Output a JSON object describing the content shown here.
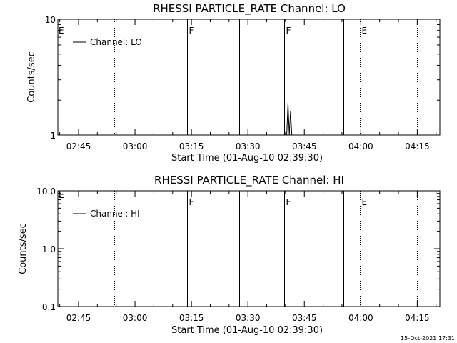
{
  "chart_data": [
    {
      "type": "line",
      "title": "RHESSI PARTICLE_RATE Channel: LO",
      "xlabel": "Start Time (01-Aug-10 02:39:30)",
      "ylabel": "Counts/sec",
      "y_scale": "log",
      "xlim": [
        "02:39:30",
        "04:21:00"
      ],
      "ylim": [
        1,
        10
      ],
      "xticks": [
        "02:45",
        "03:00",
        "03:15",
        "03:30",
        "03:45",
        "04:00",
        "04:15"
      ],
      "yticks": [
        "1",
        "10"
      ],
      "legend": {
        "label": "Channel: LO",
        "position": "top-left"
      },
      "series": [
        {
          "name": "Channel: LO",
          "x": [
            "03:40:20",
            "03:40:40",
            "03:41:00",
            "03:41:20",
            "03:41:40",
            "03:42:00"
          ],
          "y": [
            1,
            1.9,
            1,
            1.6,
            1,
            1
          ]
        }
      ],
      "markers": [
        {
          "time": "02:54:30",
          "style": "dotted",
          "label": ""
        },
        {
          "time": "03:13:50",
          "style": "solid",
          "label": "F"
        },
        {
          "time": "03:27:40",
          "style": "solid",
          "label": ""
        },
        {
          "time": "03:39:35",
          "style": "solid",
          "label": "F"
        },
        {
          "time": "03:55:20",
          "style": "solid",
          "label": ""
        },
        {
          "time": "03:59:50",
          "style": "dotted",
          "label": "E"
        },
        {
          "time": "04:15:00",
          "style": "dotted",
          "label": ""
        }
      ],
      "edge_labels": {
        "left": "E"
      }
    },
    {
      "type": "line",
      "title": "RHESSI PARTICLE_RATE Channel: HI",
      "xlabel": "Start Time (01-Aug-10 02:39:30)",
      "ylabel": "Counts/sec",
      "y_scale": "log",
      "xlim": [
        "02:39:30",
        "04:21:00"
      ],
      "ylim": [
        0.1,
        10
      ],
      "xticks": [
        "02:45",
        "03:00",
        "03:15",
        "03:30",
        "03:45",
        "04:00",
        "04:15"
      ],
      "yticks": [
        "0.1",
        "1.0",
        "10.0"
      ],
      "legend": {
        "label": "Channel: HI",
        "position": "top-left"
      },
      "series": [
        {
          "name": "Channel: HI",
          "x": [],
          "y": []
        }
      ],
      "markers": [
        {
          "time": "02:54:30",
          "style": "dotted",
          "label": ""
        },
        {
          "time": "03:13:50",
          "style": "solid",
          "label": "F"
        },
        {
          "time": "03:27:40",
          "style": "solid",
          "label": ""
        },
        {
          "time": "03:39:35",
          "style": "solid",
          "label": "F"
        },
        {
          "time": "03:55:20",
          "style": "solid",
          "label": ""
        },
        {
          "time": "03:59:50",
          "style": "dotted",
          "label": "E"
        },
        {
          "time": "04:15:00",
          "style": "dotted",
          "label": ""
        }
      ],
      "edge_labels": {
        "left": "E"
      }
    }
  ],
  "timestamp": "15-Oct-2021 17:31"
}
